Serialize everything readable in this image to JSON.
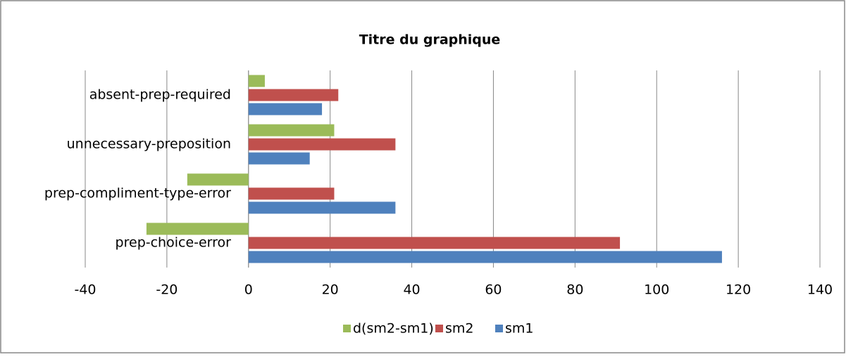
{
  "chart_data": {
    "type": "hbar",
    "title": "Titre du graphique",
    "categories": [
      "prep-choice-error",
      "prep-compliment-type-error",
      "unnecessary-preposition",
      "absent-prep-required"
    ],
    "series": [
      {
        "name": "sm1",
        "color": "#4f81bd",
        "values": [
          116,
          36,
          15,
          18
        ]
      },
      {
        "name": "sm2",
        "color": "#c0504d",
        "values": [
          91,
          21,
          36,
          22
        ]
      },
      {
        "name": "d(sm2-sm1)",
        "color": "#9bbb59",
        "values": [
          -25,
          -15,
          21,
          4
        ]
      }
    ],
    "xlim": [
      -40,
      140
    ],
    "xticks": [
      -40,
      -20,
      0,
      20,
      40,
      60,
      80,
      100,
      120,
      140
    ],
    "grid": true,
    "legend": "bottom"
  }
}
